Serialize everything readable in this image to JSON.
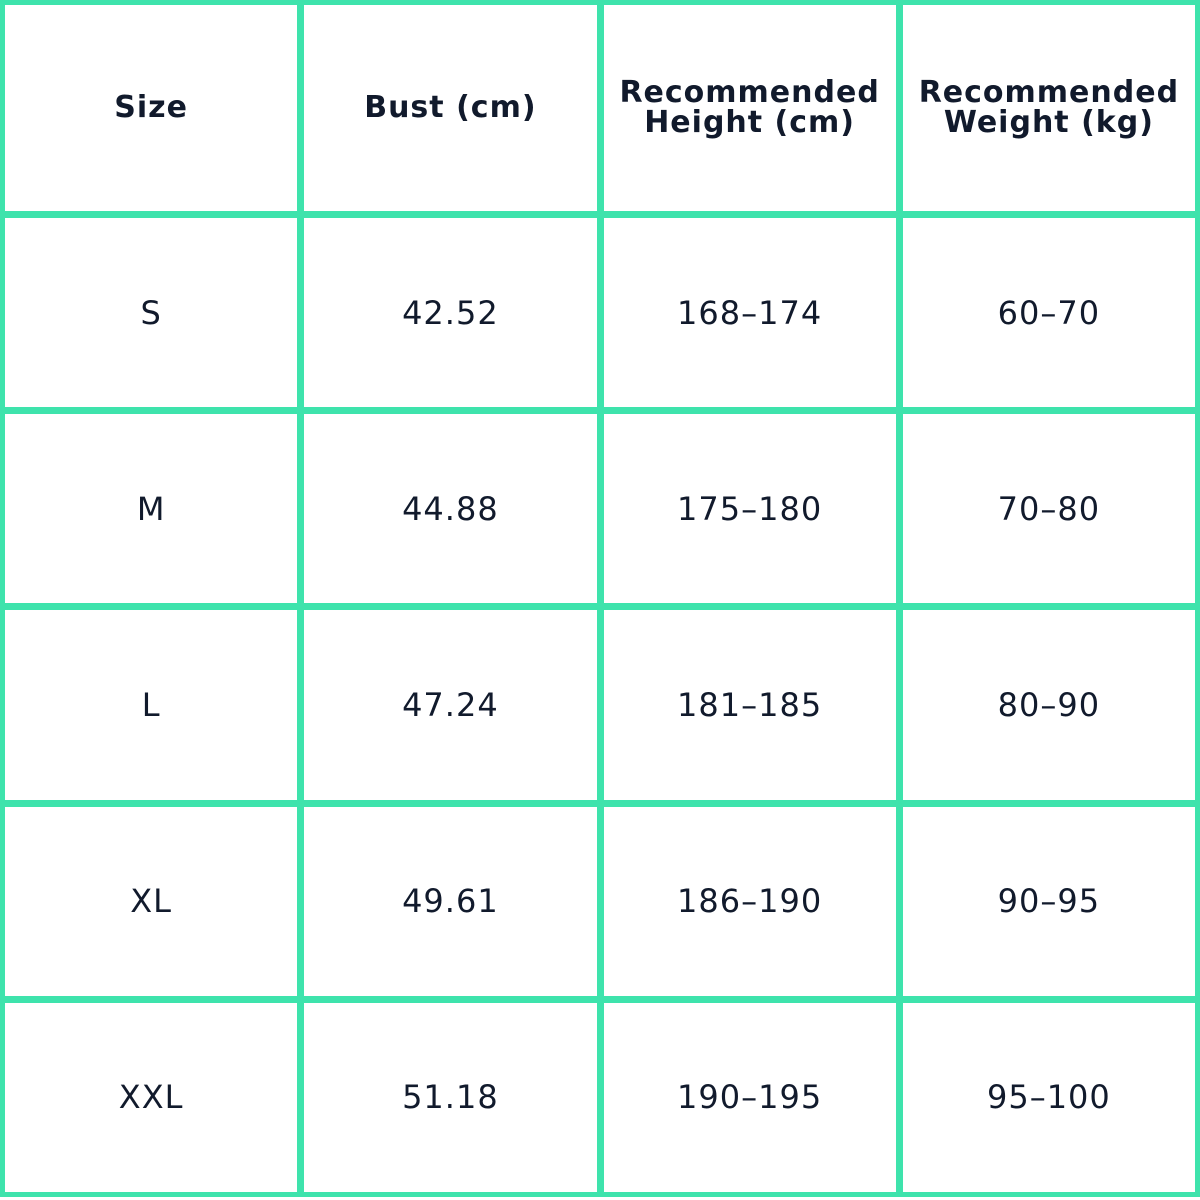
{
  "table": {
    "header": [
      "Size",
      "Bust (cm)",
      "Recommended Height (cm)",
      "Recommended Weight (kg)"
    ],
    "rows": [
      [
        "S",
        "42.52",
        "168–174",
        "60–70"
      ],
      [
        "M",
        "44.88",
        "175–180",
        "70–80"
      ],
      [
        "L",
        "47.24",
        "181–185",
        "80–90"
      ],
      [
        "XL",
        "49.61",
        "186–190",
        "90–95"
      ],
      [
        "XXL",
        "51.18",
        "190–195",
        "95–100"
      ]
    ]
  }
}
